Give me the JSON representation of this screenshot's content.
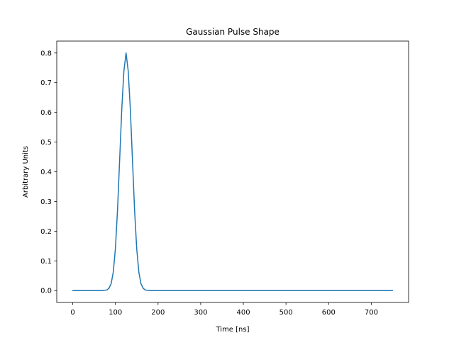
{
  "chart_data": {
    "type": "line",
    "title": "Gaussian Pulse Shape",
    "xlabel": "Time [ns]",
    "ylabel": "Arbitrary Units",
    "xlim": [
      -37.5,
      787.5
    ],
    "ylim": [
      -0.04,
      0.84
    ],
    "xticks": [
      0,
      100,
      200,
      300,
      400,
      500,
      600,
      700
    ],
    "yticks": [
      0.0,
      0.1,
      0.2,
      0.3,
      0.4,
      0.5,
      0.6,
      0.7,
      0.8
    ],
    "ytick_labels": [
      "0.0",
      "0.1",
      "0.2",
      "0.3",
      "0.4",
      "0.5",
      "0.6",
      "0.7",
      "0.8"
    ],
    "grid": false,
    "series": [
      {
        "color": "#1f77b4",
        "x": [
          0,
          10,
          20,
          30,
          40,
          50,
          60,
          70,
          75,
          80,
          85,
          90,
          95,
          100,
          105,
          110,
          115,
          120,
          125,
          130,
          135,
          140,
          145,
          150,
          155,
          160,
          165,
          170,
          175,
          180,
          190,
          200,
          250,
          300,
          350,
          400,
          450,
          500,
          550,
          600,
          650,
          700,
          750
        ],
        "y": [
          0.0,
          0.0,
          0.0,
          0.0,
          0.0,
          0.0,
          0.0,
          0.0,
          0.001,
          0.002,
          0.008,
          0.023,
          0.062,
          0.141,
          0.271,
          0.441,
          0.612,
          0.74,
          0.8,
          0.74,
          0.612,
          0.441,
          0.271,
          0.141,
          0.062,
          0.023,
          0.008,
          0.002,
          0.001,
          0.0,
          0.0,
          0.0,
          0.0,
          0.0,
          0.0,
          0.0,
          0.0,
          0.0,
          0.0,
          0.0,
          0.0,
          0.0,
          0.0
        ]
      }
    ]
  }
}
